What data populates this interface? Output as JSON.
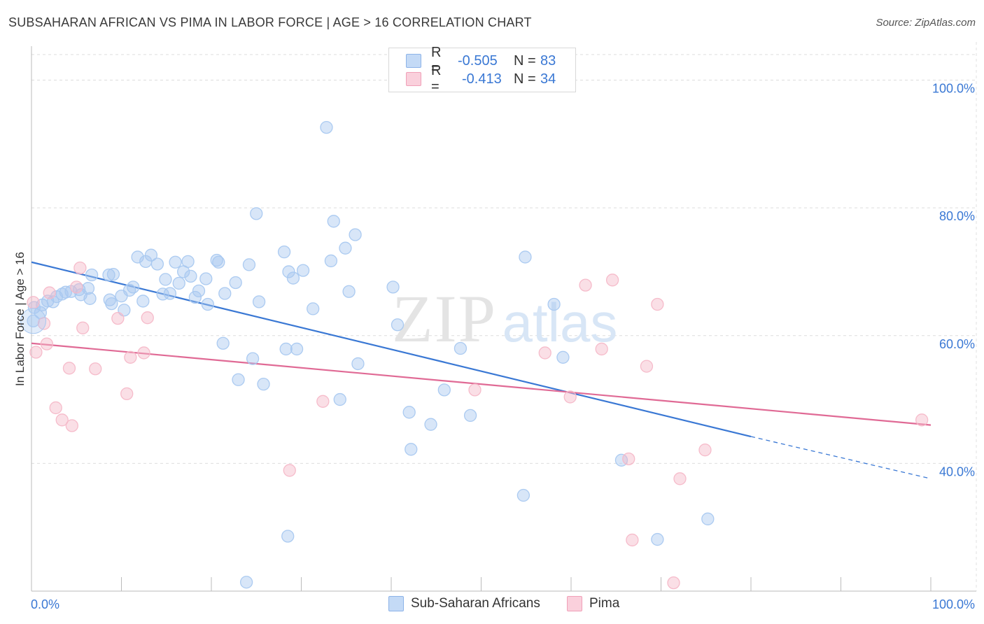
{
  "title": "SUBSAHARAN AFRICAN VS PIMA IN LABOR FORCE | AGE > 16 CORRELATION CHART",
  "source": "Source: ZipAtlas.com",
  "watermark": {
    "zip": "ZIP",
    "atlas": "atlas"
  },
  "legend": {
    "rows": [
      {
        "r_label": "R =",
        "r_value": "-0.505",
        "n_label": "N =",
        "n_value": "83",
        "color": "#a8c8f0"
      },
      {
        "r_label": "R =",
        "r_value": "-0.413",
        "n_label": "N =",
        "n_value": "34",
        "color": "#f5b8c8"
      }
    ]
  },
  "bottom_legend": [
    {
      "label": "Sub-Saharan Africans",
      "color": "#a8c8f0"
    },
    {
      "label": "Pima",
      "color": "#f5b8c8"
    }
  ],
  "chart_data": {
    "type": "scatter",
    "title": "SUBSAHARAN AFRICAN VS PIMA IN LABOR FORCE | AGE > 16 CORRELATION CHART",
    "xlabel": "",
    "ylabel": "In Labor Force | Age > 16",
    "xlim": [
      0,
      100
    ],
    "ylim": [
      20,
      104
    ],
    "x_tick_labels": [
      "0.0%",
      "100.0%"
    ],
    "y_ticks": [
      40,
      60,
      80,
      100
    ],
    "y_tick_labels": [
      "40.0%",
      "60.0%",
      "80.0%",
      "100.0%"
    ],
    "grid": true,
    "legend_position": "top-center",
    "series": [
      {
        "name": "Sub-Saharan Africans",
        "color": "#3a78d4",
        "fill": "#a8c8f0",
        "points": [
          [
            0.2,
            62.3
          ],
          [
            1.2,
            64.8
          ],
          [
            1.8,
            65.4
          ],
          [
            2.4,
            65.3
          ],
          [
            2.8,
            66.1
          ],
          [
            3.4,
            66.5
          ],
          [
            3.8,
            66.8
          ],
          [
            4.4,
            66.9
          ],
          [
            5.3,
            67.2
          ],
          [
            5.5,
            66.4
          ],
          [
            6.3,
            67.4
          ],
          [
            6.5,
            65.8
          ],
          [
            6.7,
            69.5
          ],
          [
            8.6,
            69.5
          ],
          [
            8.7,
            65.6
          ],
          [
            8.9,
            65.0
          ],
          [
            9.1,
            69.6
          ],
          [
            10.0,
            66.2
          ],
          [
            10.3,
            64.0
          ],
          [
            10.9,
            67.1
          ],
          [
            11.3,
            67.6
          ],
          [
            11.8,
            72.3
          ],
          [
            12.4,
            65.4
          ],
          [
            12.7,
            71.6
          ],
          [
            13.3,
            72.6
          ],
          [
            14.0,
            71.2
          ],
          [
            14.6,
            66.5
          ],
          [
            14.9,
            68.8
          ],
          [
            15.4,
            66.6
          ],
          [
            16.0,
            71.5
          ],
          [
            16.4,
            68.2
          ],
          [
            16.9,
            70.0
          ],
          [
            17.4,
            71.6
          ],
          [
            17.7,
            69.3
          ],
          [
            18.2,
            66.0
          ],
          [
            18.6,
            67.0
          ],
          [
            19.4,
            68.9
          ],
          [
            19.6,
            64.9
          ],
          [
            20.6,
            71.8
          ],
          [
            20.8,
            71.5
          ],
          [
            21.3,
            58.8
          ],
          [
            21.5,
            66.6
          ],
          [
            22.7,
            68.3
          ],
          [
            23.0,
            53.1
          ],
          [
            24.2,
            71.1
          ],
          [
            24.6,
            56.4
          ],
          [
            25.0,
            79.1
          ],
          [
            25.3,
            65.3
          ],
          [
            25.8,
            52.4
          ],
          [
            28.1,
            73.1
          ],
          [
            28.6,
            70.0
          ],
          [
            29.1,
            69.0
          ],
          [
            30.2,
            70.2
          ],
          [
            28.5,
            28.6
          ],
          [
            29.5,
            57.9
          ],
          [
            31.3,
            64.2
          ],
          [
            32.8,
            92.6
          ],
          [
            33.3,
            71.7
          ],
          [
            33.6,
            77.9
          ],
          [
            34.9,
            73.7
          ],
          [
            35.3,
            66.9
          ],
          [
            36.0,
            75.8
          ],
          [
            34.3,
            50.0
          ],
          [
            36.3,
            55.6
          ],
          [
            23.9,
            21.4
          ],
          [
            28.3,
            57.9
          ],
          [
            40.2,
            67.6
          ],
          [
            40.7,
            61.7
          ],
          [
            42.0,
            48.0
          ],
          [
            42.2,
            42.2
          ],
          [
            44.4,
            46.1
          ],
          [
            45.9,
            51.5
          ],
          [
            47.7,
            58.0
          ],
          [
            48.8,
            47.5
          ],
          [
            54.7,
            35.0
          ],
          [
            54.9,
            72.3
          ],
          [
            58.1,
            64.9
          ],
          [
            59.1,
            56.6
          ],
          [
            65.6,
            40.5
          ],
          [
            69.6,
            28.1
          ],
          [
            75.2,
            31.3
          ],
          [
            1.0,
            63.6
          ],
          [
            0.3,
            64.4
          ]
        ],
        "trend": {
          "x0": 0,
          "y0": 71.5,
          "x1": 80,
          "y1": 44.2,
          "dash_x1": 100,
          "dash_y1": 37.6
        }
      },
      {
        "name": "Pima",
        "color": "#e06a95",
        "fill": "#f5b8c8",
        "points": [
          [
            0.2,
            65.2
          ],
          [
            0.5,
            57.4
          ],
          [
            1.4,
            61.9
          ],
          [
            1.7,
            58.7
          ],
          [
            2.0,
            66.7
          ],
          [
            2.7,
            48.7
          ],
          [
            3.4,
            46.8
          ],
          [
            4.2,
            54.9
          ],
          [
            4.5,
            45.9
          ],
          [
            5.0,
            67.6
          ],
          [
            5.4,
            70.6
          ],
          [
            5.7,
            61.2
          ],
          [
            7.1,
            54.8
          ],
          [
            9.6,
            62.7
          ],
          [
            10.6,
            50.9
          ],
          [
            11.0,
            56.6
          ],
          [
            12.5,
            57.3
          ],
          [
            12.9,
            62.8
          ],
          [
            28.7,
            38.9
          ],
          [
            32.4,
            49.7
          ],
          [
            49.3,
            51.5
          ],
          [
            57.1,
            57.3
          ],
          [
            59.9,
            50.4
          ],
          [
            61.6,
            67.9
          ],
          [
            63.4,
            57.9
          ],
          [
            64.6,
            68.7
          ],
          [
            66.4,
            40.7
          ],
          [
            66.8,
            28.0
          ],
          [
            68.4,
            55.2
          ],
          [
            69.6,
            64.9
          ],
          [
            72.1,
            37.6
          ],
          [
            74.9,
            42.1
          ],
          [
            71.4,
            21.3
          ],
          [
            99.0,
            46.8
          ]
        ],
        "trend": {
          "x0": 0,
          "y0": 58.8,
          "x1": 100,
          "y1": 46.0
        }
      }
    ]
  }
}
